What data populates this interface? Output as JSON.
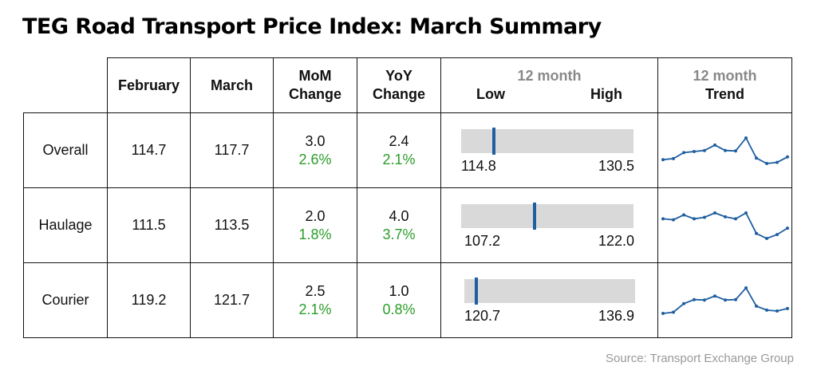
{
  "title": "TEG Road Transport Price Index: March Summary",
  "headers": {
    "february": "February",
    "march": "March",
    "mom_line1": "MoM",
    "mom_line2": "Change",
    "yoy_line1": "YoY",
    "yoy_line2": "Change",
    "range_top": "12 month",
    "range_low": "Low",
    "range_high": "High",
    "trend_top": "12 month",
    "trend_bottom": "Trend"
  },
  "source": "Source: Transport Exchange Group",
  "colors": {
    "positive": "#2a9d2a",
    "marker": "#1f5fa0",
    "spark": "#1f5fa0",
    "bar": "#d9d9d9"
  },
  "chart_data": {
    "type": "table",
    "rows": [
      {
        "name": "Overall",
        "february": "114.7",
        "march": "117.7",
        "mom_change": "3.0",
        "mom_pct": "2.6%",
        "yoy_change": "2.4",
        "yoy_pct": "2.1%",
        "range_low": "114.8",
        "range_high": "130.5",
        "current": 117.7,
        "trend": [
          117.5,
          117.7,
          118.8,
          119.0,
          119.2,
          120.2,
          119.2,
          119.1,
          121.5,
          117.8,
          116.8,
          117.0,
          118.0
        ]
      },
      {
        "name": "Haulage",
        "february": "111.5",
        "march": "113.5",
        "mom_change": "2.0",
        "mom_pct": "1.8%",
        "yoy_change": "4.0",
        "yoy_pct": "3.7%",
        "range_low": "107.2",
        "range_high": "122.0",
        "current": 113.5,
        "trend": [
          113.4,
          113.2,
          114.2,
          113.4,
          113.7,
          114.6,
          113.8,
          113.4,
          114.6,
          110.4,
          109.4,
          110.2,
          111.5
        ]
      },
      {
        "name": "Courier",
        "february": "119.2",
        "march": "121.7",
        "mom_change": "2.5",
        "mom_pct": "2.1%",
        "yoy_change": "1.0",
        "yoy_pct": "0.8%",
        "range_low": "120.7",
        "range_high": "136.9",
        "current": 121.7,
        "trend": [
          121.2,
          121.5,
          123.6,
          124.6,
          124.5,
          125.5,
          124.5,
          124.6,
          127.5,
          123.0,
          122.0,
          121.8,
          122.4
        ]
      }
    ]
  }
}
